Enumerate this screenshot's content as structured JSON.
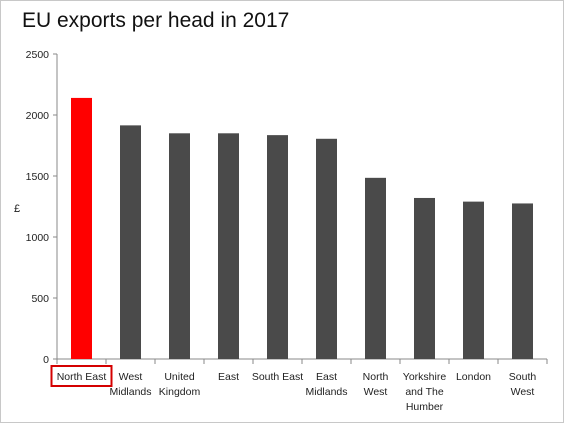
{
  "chart_data": {
    "type": "bar",
    "title": "EU exports per head in 2017",
    "xlabel": "",
    "ylabel": "£",
    "ylim": [
      0,
      2500
    ],
    "yticks": [
      0,
      500,
      1000,
      1500,
      2000,
      2500
    ],
    "grid": false,
    "legend": "none",
    "categories": [
      [
        "North East"
      ],
      [
        "West",
        "Midlands"
      ],
      [
        "United",
        "Kingdom"
      ],
      [
        "East"
      ],
      [
        "South East"
      ],
      [
        "East",
        "Midlands"
      ],
      [
        "North",
        "West"
      ],
      [
        "Yorkshire",
        "and The",
        "Humber"
      ],
      [
        "London"
      ],
      [
        "South",
        "West"
      ]
    ],
    "values": [
      2140,
      1915,
      1850,
      1850,
      1835,
      1805,
      1485,
      1320,
      1290,
      1275
    ],
    "highlight_index": 0,
    "colors": {
      "bar": "#4a4a4a",
      "highlight": "#ff0000",
      "highlight_box": "#d40000",
      "axis": "#888888"
    }
  }
}
